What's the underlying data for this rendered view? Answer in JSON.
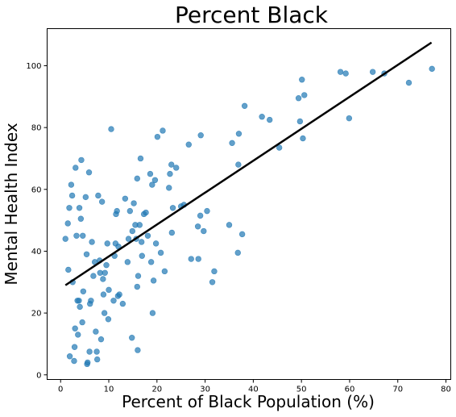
{
  "chart_data": {
    "type": "scatter",
    "title": "Percent Black",
    "xlabel": "Percent of Black Population (%)",
    "ylabel": "Mental Health Index",
    "xlim": [
      -2.8,
      81
    ],
    "ylim": [
      -1.5,
      112
    ],
    "xticks": [
      0,
      10,
      20,
      30,
      40,
      50,
      60,
      70,
      80
    ],
    "yticks": [
      0,
      20,
      40,
      60,
      80,
      100
    ],
    "grid": false,
    "point_color": "#1f77b4",
    "line_color": "#000000",
    "points": [
      [
        1.0,
        44
      ],
      [
        1.5,
        49
      ],
      [
        1.6,
        34
      ],
      [
        1.8,
        54
      ],
      [
        1.9,
        6
      ],
      [
        2.2,
        61.5
      ],
      [
        2.4,
        58
      ],
      [
        2.5,
        30
      ],
      [
        2.8,
        4.5
      ],
      [
        2.9,
        9
      ],
      [
        3.0,
        15
      ],
      [
        3.1,
        67
      ],
      [
        3.3,
        45
      ],
      [
        3.5,
        24
      ],
      [
        3.6,
        13
      ],
      [
        3.8,
        24
      ],
      [
        3.9,
        54
      ],
      [
        4.0,
        22
      ],
      [
        4.2,
        50.5
      ],
      [
        4.3,
        69.5
      ],
      [
        4.5,
        17
      ],
      [
        4.6,
        45
      ],
      [
        4.7,
        27
      ],
      [
        5.2,
        57.5
      ],
      [
        5.4,
        39
      ],
      [
        5.5,
        3.5
      ],
      [
        5.6,
        4
      ],
      [
        5.9,
        65.5
      ],
      [
        6.0,
        7.5
      ],
      [
        6.1,
        23
      ],
      [
        6.3,
        24
      ],
      [
        6.5,
        43
      ],
      [
        6.8,
        32
      ],
      [
        7.1,
        36.5
      ],
      [
        7.3,
        14
      ],
      [
        7.5,
        7.5
      ],
      [
        7.6,
        5
      ],
      [
        7.8,
        58
      ],
      [
        8.1,
        37
      ],
      [
        8.2,
        33
      ],
      [
        8.4,
        11.5
      ],
      [
        8.6,
        56
      ],
      [
        8.8,
        31
      ],
      [
        8.9,
        26
      ],
      [
        9.1,
        20
      ],
      [
        9.2,
        33
      ],
      [
        9.5,
        35.5
      ],
      [
        9.7,
        42.5
      ],
      [
        9.9,
        18
      ],
      [
        10.0,
        27.5
      ],
      [
        10.5,
        79.5
      ],
      [
        11.0,
        24
      ],
      [
        11.2,
        38.5
      ],
      [
        11.4,
        42.5
      ],
      [
        11.5,
        52
      ],
      [
        11.7,
        53
      ],
      [
        11.9,
        25.5
      ],
      [
        12.0,
        41.5
      ],
      [
        12.2,
        26
      ],
      [
        12.9,
        23
      ],
      [
        13.4,
        57
      ],
      [
        13.9,
        36.5
      ],
      [
        14.1,
        44
      ],
      [
        14.4,
        53
      ],
      [
        14.8,
        12
      ],
      [
        14.9,
        46.5
      ],
      [
        15.2,
        55.5
      ],
      [
        15.5,
        48.5
      ],
      [
        15.7,
        44
      ],
      [
        15.9,
        28.5
      ],
      [
        15.9,
        63.5
      ],
      [
        16.0,
        8
      ],
      [
        16.1,
        32
      ],
      [
        16.4,
        48.5
      ],
      [
        16.6,
        70
      ],
      [
        16.8,
        43
      ],
      [
        16.9,
        38.5
      ],
      [
        17.3,
        52
      ],
      [
        17.7,
        52.5
      ],
      [
        18.1,
        45
      ],
      [
        18.6,
        65
      ],
      [
        18.8,
        36.5
      ],
      [
        19.0,
        61.5
      ],
      [
        19.1,
        20
      ],
      [
        19.3,
        30.5
      ],
      [
        19.6,
        63
      ],
      [
        19.8,
        42.5
      ],
      [
        20.1,
        77
      ],
      [
        20.8,
        39.5
      ],
      [
        21.2,
        79
      ],
      [
        21.6,
        33.5
      ],
      [
        22.5,
        60.5
      ],
      [
        22.7,
        65
      ],
      [
        23.0,
        68
      ],
      [
        23.1,
        46
      ],
      [
        23.3,
        54
      ],
      [
        24.0,
        67
      ],
      [
        25.0,
        54.5
      ],
      [
        25.6,
        55
      ],
      [
        26.6,
        74.5
      ],
      [
        27.1,
        37.5
      ],
      [
        28.5,
        48
      ],
      [
        28.6,
        37.5
      ],
      [
        29.0,
        51.5
      ],
      [
        29.1,
        77.5
      ],
      [
        29.7,
        46.5
      ],
      [
        30.4,
        53
      ],
      [
        31.5,
        30
      ],
      [
        31.9,
        33.5
      ],
      [
        35.0,
        48.5
      ],
      [
        35.6,
        75
      ],
      [
        36.8,
        39.5
      ],
      [
        36.9,
        68
      ],
      [
        37.0,
        78
      ],
      [
        37.7,
        45.5
      ],
      [
        38.2,
        87
      ],
      [
        41.8,
        83.5
      ],
      [
        43.4,
        82.5
      ],
      [
        45.4,
        73.5
      ],
      [
        49.4,
        89.5
      ],
      [
        49.7,
        82
      ],
      [
        50.1,
        95.5
      ],
      [
        50.3,
        76.5
      ],
      [
        50.6,
        90.5
      ],
      [
        58.1,
        98
      ],
      [
        59.2,
        97.5
      ],
      [
        59.9,
        83
      ],
      [
        64.8,
        98
      ],
      [
        67.2,
        97.5
      ],
      [
        72.3,
        94.5
      ],
      [
        77.1,
        99
      ]
    ],
    "fit_line": [
      [
        1,
        29
      ],
      [
        77,
        107.5
      ]
    ]
  }
}
